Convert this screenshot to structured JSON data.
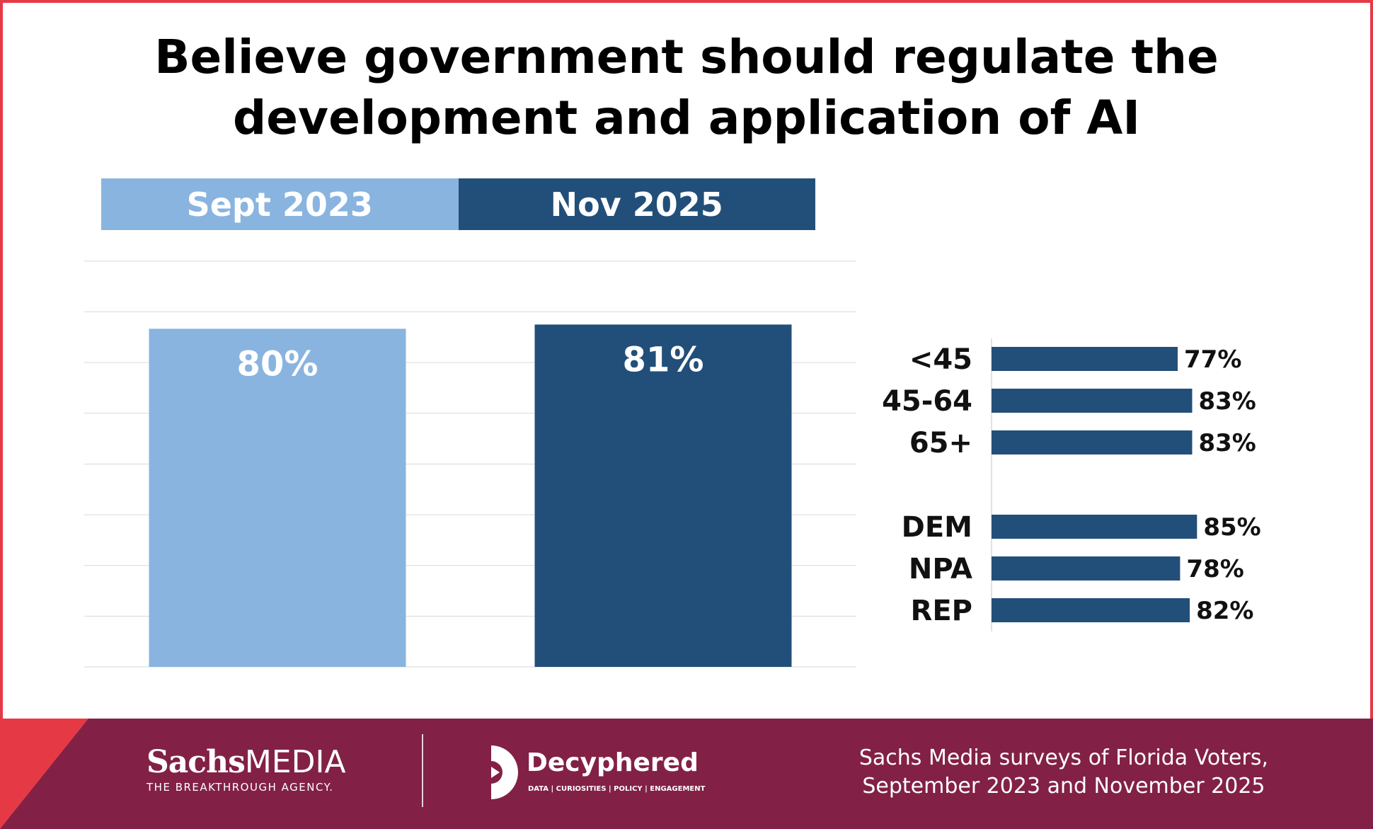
{
  "chart_data": [
    {
      "type": "bar",
      "title": "Believe government should regulate the development and application of AI",
      "title_lines": [
        "Believe government should regulate the",
        "development and application of AI"
      ],
      "categories": [
        "Sept 2023",
        "Nov 2025"
      ],
      "values": [
        80,
        81
      ],
      "value_labels": [
        "80%",
        "81%"
      ],
      "colors": [
        "#89b4df",
        "#224f79"
      ],
      "ylim": [
        0,
        100
      ],
      "grid": true,
      "legend": "top"
    },
    {
      "type": "bar",
      "orientation": "horizontal",
      "groups": [
        {
          "name": "age",
          "categories": [
            "<45",
            "45-64",
            "65+"
          ],
          "values": [
            77,
            83,
            83
          ],
          "value_labels": [
            "77%",
            "83%",
            "83%"
          ]
        },
        {
          "name": "party",
          "categories": [
            "DEM",
            "NPA",
            "REP"
          ],
          "values": [
            85,
            78,
            82
          ],
          "value_labels": [
            "85%",
            "78%",
            "82%"
          ]
        }
      ],
      "color": "#224f79",
      "xlim": [
        0,
        100
      ]
    }
  ],
  "footer": {
    "sachs_word_bold": "Sachs",
    "sachs_word_light": "MEDIA",
    "sachs_tagline": "THE BREAKTHROUGH AGENCY.",
    "decyphered_name": "Decyphered",
    "decyphered_tagline": "DATA | CURIOSITIES | POLICY | ENGAGEMENT",
    "source_line1": "Sachs Media surveys of Florida Voters,",
    "source_line2": "September 2023 and November 2025"
  },
  "colors": {
    "border": "#e63946",
    "footer": "#822145",
    "light_bar": "#89b4df",
    "dark_bar": "#224f79"
  }
}
